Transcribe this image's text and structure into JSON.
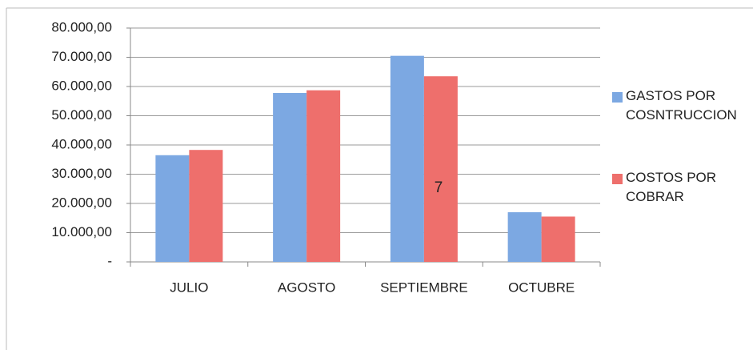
{
  "chart_data": {
    "type": "bar",
    "categories": [
      "JULIO",
      "AGOSTO",
      "SEPTIEMBRE",
      "OCTUBRE"
    ],
    "series": [
      {
        "name": "GASTOS POR COSNTRUCCION",
        "color": "#7ca8e2",
        "values": [
          36500,
          57800,
          70500,
          17000
        ]
      },
      {
        "name": "COSTOS POR COBRAR",
        "color": "#ee6f6c",
        "values": [
          38300,
          58700,
          63500,
          15500
        ]
      }
    ],
    "ylim": [
      0,
      80000
    ],
    "yticks": [
      {
        "value": 0,
        "label": "-"
      },
      {
        "value": 10000,
        "label": "10.000,00"
      },
      {
        "value": 20000,
        "label": "20.000,00"
      },
      {
        "value": 30000,
        "label": "30.000,00"
      },
      {
        "value": 40000,
        "label": "40.000,00"
      },
      {
        "value": 50000,
        "label": "50.000,00"
      },
      {
        "value": 60000,
        "label": "60.000,00"
      },
      {
        "value": 70000,
        "label": "70.000,00"
      },
      {
        "value": 80000,
        "label": "80.000,00"
      }
    ],
    "grid": true,
    "legend": "right",
    "annotations": [
      "7"
    ]
  }
}
